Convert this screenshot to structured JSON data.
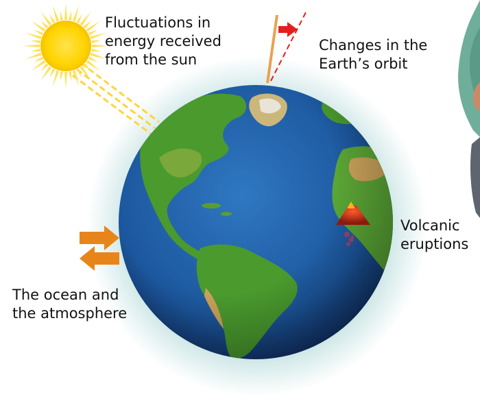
{
  "labels": {
    "sun": "Fluctuations in\nenergy received\nfrom the sun",
    "orbit": "Changes in the\nEarth’s orbit",
    "volcano": "Volcanic\neruptions",
    "ocean": "The ocean and\nthe atmosphere"
  },
  "icons": {
    "sun": "sun-icon",
    "earth": "earth-globe-icon",
    "volcano": "volcano-icon",
    "exchange": "exchange-arrows-icon",
    "tilt": "axis-tilt-arrow-icon",
    "person": "person-figure-icon"
  },
  "colors": {
    "sun": "#FFD400",
    "sun_rays": "#FFD43A",
    "ocean": "#1f5fa8",
    "land": "#4a9a2e",
    "glow": "#cfe7e7",
    "arrows": "#E8851A",
    "tilt_arrow": "#E41E1E",
    "axis": "#E9A153"
  }
}
